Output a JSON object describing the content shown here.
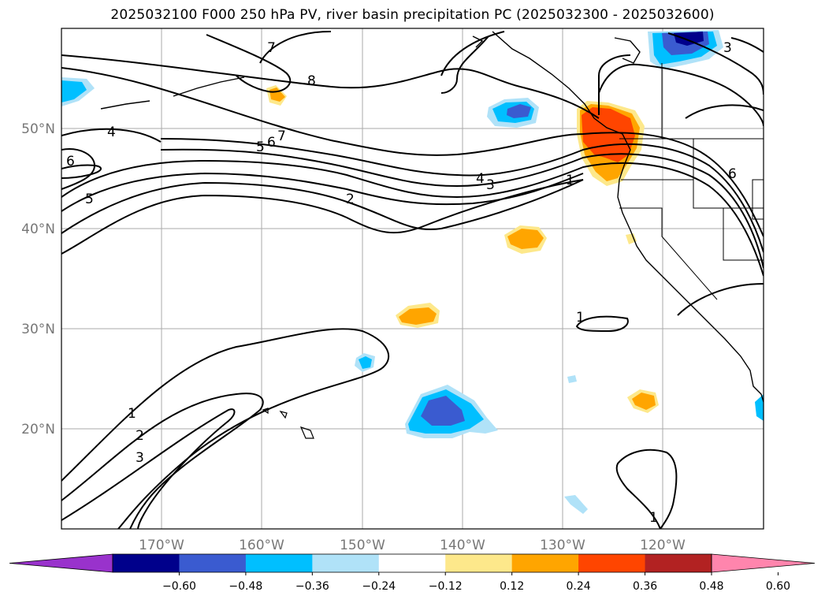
{
  "title": "2025032100 F000 250 hPa PV, river basin precipitation PC (2025032300 - 2025032600)",
  "map": {
    "lon_range": [
      -180,
      -110
    ],
    "lat_range": [
      10,
      60
    ],
    "meridian_labels": [
      "170°W",
      "160°W",
      "150°W",
      "140°W",
      "130°W",
      "120°W"
    ],
    "parallel_labels": [
      "50°N",
      "40°N",
      "30°N",
      "20°N"
    ],
    "gridlines": true
  },
  "contour_labels": [
    "7",
    "8",
    "4",
    "6",
    "5",
    "7",
    "6",
    "5",
    "2",
    "4",
    "3",
    "1",
    "6",
    "3",
    "1",
    "2",
    "3",
    "1",
    "1"
  ],
  "colorbar": {
    "ticks": [
      "−0.60",
      "−0.48",
      "−0.36",
      "−0.24",
      "−0.12",
      "0.12",
      "0.24",
      "0.36",
      "0.48",
      "0.60"
    ],
    "colors": [
      "#9932cc",
      "#00008b",
      "#3a5bd0",
      "#00bfff",
      "#b0e2f8",
      "#ffffff",
      "#fde88b",
      "#ffa500",
      "#ff4500",
      "#b22222",
      "#ff85ad"
    ]
  }
}
